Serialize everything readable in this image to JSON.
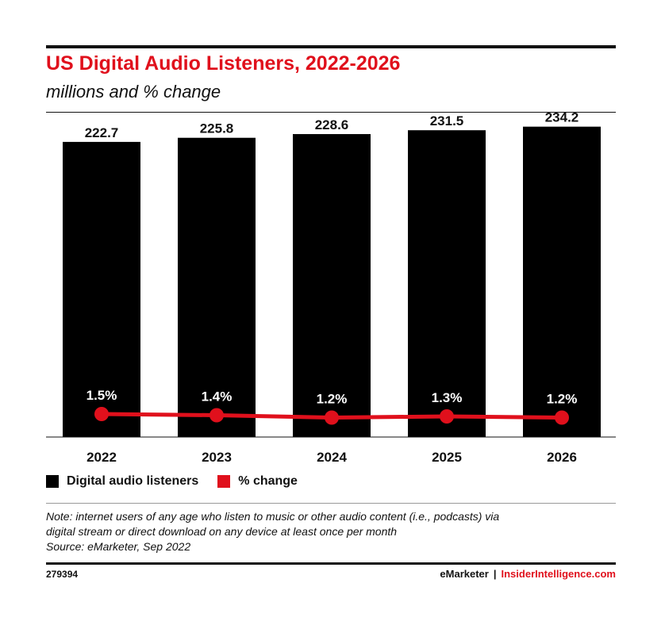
{
  "header": {
    "title": "US Digital Audio Listeners, 2022-2026",
    "subtitle": "millions and % change"
  },
  "colors": {
    "title": "#e0101c",
    "bars": "#000000",
    "line": "#e0101c"
  },
  "chart_data": {
    "type": "bar",
    "title": "US Digital Audio Listeners, 2022-2026",
    "subtitle": "millions and % change",
    "categories": [
      "2022",
      "2023",
      "2024",
      "2025",
      "2026"
    ],
    "series": [
      {
        "name": "Digital audio listeners",
        "type": "bar",
        "values": [
          222.7,
          225.8,
          228.6,
          231.5,
          234.2
        ],
        "labels": [
          "222.7",
          "225.8",
          "228.6",
          "231.5",
          "234.2"
        ]
      },
      {
        "name": "% change",
        "type": "line",
        "values": [
          1.5,
          1.4,
          1.2,
          1.3,
          1.2
        ],
        "labels": [
          "1.5%",
          "1.4%",
          "1.2%",
          "1.3%",
          "1.2%"
        ]
      }
    ],
    "legend": "bottom-left"
  },
  "legend": [
    {
      "label": "Digital audio listeners",
      "color": "#000000"
    },
    {
      "label": "% change",
      "color": "#e0101c"
    }
  ],
  "note": {
    "line1": "Note: internet users of any age who listen to music or other audio content (i.e., podcasts) via",
    "line2": "digital stream or direct download on any device at least once per month",
    "source": "Source: eMarketer, Sep 2022"
  },
  "footer": {
    "chart_id": "279394",
    "brand_left": "eMarketer",
    "separator": "|",
    "brand_right": "InsiderIntelligence.com"
  }
}
